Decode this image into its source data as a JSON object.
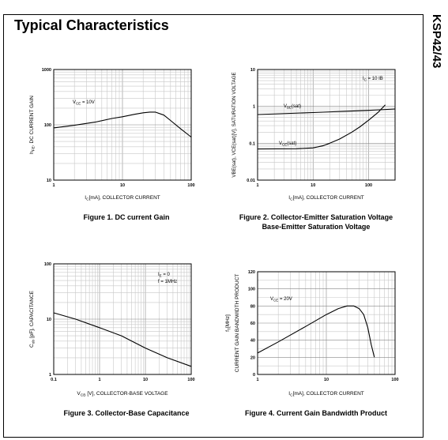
{
  "page_title": "Typical Characteristics",
  "part_number": "KSP42/43",
  "captions": [
    "Figure 1. DC current Gain",
    "Figure 2. Collector-Emitter Saturation Voltage",
    "Base-Emitter Saturation Voltage",
    "Figure 3. Collector-Base Capacitance",
    "Figure 4. Current Gain Bandwidth Product"
  ],
  "chart_data": [
    {
      "type": "line",
      "xscale": "log",
      "yscale": "log",
      "xlim": [
        1,
        100
      ],
      "ylim": [
        10,
        1000
      ],
      "xticks": [
        "1",
        "10",
        "100"
      ],
      "yticks": [
        "10",
        "100",
        "1000"
      ],
      "xlabel": "IC[mA], COLLECTOR CURRENT",
      "ylabel": "hFE, DC CURRENT GAIN",
      "annotations": [
        "VCE = 10V"
      ],
      "grid": true,
      "series": [
        {
          "x": [
            1,
            2,
            4,
            7,
            10,
            15,
            20,
            25,
            30,
            40,
            50,
            70,
            100
          ],
          "y": [
            88,
            98,
            112,
            130,
            140,
            155,
            165,
            170,
            170,
            150,
            120,
            85,
            60
          ]
        }
      ]
    },
    {
      "type": "line",
      "xscale": "log",
      "yscale": "log",
      "xlim": [
        1,
        300
      ],
      "ylim": [
        0.01,
        10
      ],
      "xticks": [
        "1",
        "10",
        "100"
      ],
      "yticks": [
        "0.01",
        "0.1",
        "1",
        "10"
      ],
      "xlabel": "IC[mA], COLLECTOR CURRENT",
      "ylabel": "VBE(sat), VCE(sat)[V], SATURATION VOLTAGE",
      "annotations": [
        "IC = 10 IB",
        "VBE(sat)",
        "VCE(sat)"
      ],
      "grid": true,
      "series": [
        {
          "name": "VBE(sat)",
          "x": [
            1,
            10,
            100,
            300
          ],
          "y": [
            0.6,
            0.68,
            0.78,
            0.85
          ]
        },
        {
          "name": "VCE(sat)",
          "x": [
            1,
            5,
            10,
            15,
            20,
            30,
            50,
            70,
            100,
            150,
            200
          ],
          "y": [
            0.07,
            0.071,
            0.075,
            0.085,
            0.1,
            0.13,
            0.2,
            0.28,
            0.42,
            0.7,
            1.1
          ]
        }
      ]
    },
    {
      "type": "line",
      "xscale": "log",
      "yscale": "log",
      "xlim": [
        0.1,
        100
      ],
      "ylim": [
        1,
        100
      ],
      "xticks": [
        "0.1",
        "1",
        "10",
        "100"
      ],
      "yticks": [
        "1",
        "10",
        "100"
      ],
      "xlabel": "VCB [V], COLLECTOR-BASE VOLTAGE",
      "ylabel": "Cob [pF], CAPACITANCE",
      "annotations": [
        "IE = 0",
        "f = 1MHz"
      ],
      "grid": true,
      "series": [
        {
          "x": [
            0.1,
            0.3,
            1,
            3,
            10,
            30,
            100
          ],
          "y": [
            13,
            10,
            7,
            5,
            3,
            2,
            1.4
          ]
        }
      ]
    },
    {
      "type": "line",
      "xscale": "log",
      "yscale": "linear",
      "xlim": [
        1,
        100
      ],
      "ylim": [
        0,
        120
      ],
      "xticks": [
        "1",
        "10",
        "100"
      ],
      "yticks": [
        "0",
        "20",
        "40",
        "60",
        "80",
        "100",
        "120"
      ],
      "xlabel": "IC[mA], COLLECTOR CURRENT",
      "ylabel": "fT[MHz] CURRENT GAIN BANDWIDTH PRODUCT",
      "annotations": [
        "VCE = 20V"
      ],
      "grid": true,
      "series": [
        {
          "x": [
            1,
            2,
            5,
            10,
            15,
            20,
            25,
            30,
            35,
            40,
            45,
            50
          ],
          "y": [
            25,
            38,
            56,
            70,
            77,
            80,
            80,
            77,
            70,
            55,
            35,
            20
          ]
        }
      ]
    }
  ]
}
